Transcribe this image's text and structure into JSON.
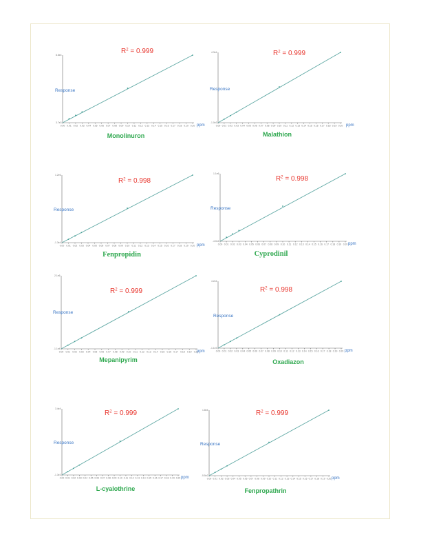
{
  "chart_data": [
    {
      "type": "line",
      "title": "Monolinuron",
      "r2_label": "R",
      "r2_value": " = 0.999",
      "ylabel": "Response",
      "xunit": "ppm",
      "y_top_label": "8.8e4",
      "y_bottom_label": "3.7e3",
      "x_ticks": [
        "0.00",
        "0.01",
        "0.02",
        "0.03",
        "0.04",
        "0.05",
        "0.06",
        "0.07",
        "0.08",
        "0.09",
        "0.10",
        "0.11",
        "0.12",
        "0.13",
        "0.14",
        "0.15",
        "0.16",
        "0.17",
        "0.18",
        "0.19",
        "0.20"
      ],
      "x": [
        0.01,
        0.02,
        0.03,
        0.1,
        0.2
      ],
      "y": [
        0.06,
        0.11,
        0.16,
        0.51,
        1.0
      ]
    },
    {
      "type": "line",
      "title": "Malathion",
      "r2_label": "R",
      "r2_value": " = 0.999",
      "ylabel": "Response",
      "xunit": "ppm",
      "y_top_label": "4.3e4",
      "y_bottom_label": "-1.0e3",
      "x_ticks": [
        "0.00",
        "0.01",
        "0.02",
        "0.03",
        "0.04",
        "0.05",
        "0.06",
        "0.07",
        "0.08",
        "0.09",
        "0.10",
        "0.11",
        "0.12",
        "0.13",
        "0.14",
        "0.15",
        "0.16",
        "0.17",
        "0.18",
        "0.19",
        "0.20"
      ],
      "x": [
        0.01,
        0.02,
        0.03,
        0.1,
        0.2
      ],
      "y": [
        0.05,
        0.1,
        0.15,
        0.51,
        1.0
      ]
    },
    {
      "type": "line",
      "title": "Fenpropidin",
      "r2_label": "R",
      "r2_value": " = 0.998",
      "ylabel": "Response",
      "xunit": "ppm",
      "y_top_label": "1.2e6",
      "y_bottom_label": "-1.3e4",
      "x_ticks": [
        "0.00",
        "0.01",
        "0.02",
        "0.03",
        "0.04",
        "0.05",
        "0.06",
        "0.07",
        "0.08",
        "0.09",
        "0.10",
        "0.11",
        "0.12",
        "0.13",
        "0.14",
        "0.15",
        "0.16",
        "0.17",
        "0.18",
        "0.19",
        "0.20"
      ],
      "x": [
        0.01,
        0.02,
        0.03,
        0.1,
        0.2
      ],
      "y": [
        0.05,
        0.1,
        0.15,
        0.51,
        1.0
      ]
    },
    {
      "type": "line",
      "title": "Cyprodinil",
      "r2_label": "R",
      "r2_value": " = 0.998",
      "ylabel": "Response",
      "xunit": "ppm",
      "y_top_label": "1.1e6",
      "y_bottom_label": "-4.0e4",
      "x_ticks": [
        "0.00",
        "0.01",
        "0.02",
        "0.03",
        "0.04",
        "0.05",
        "0.06",
        "0.07",
        "0.08",
        "0.09",
        "0.10",
        "0.11",
        "0.12",
        "0.13",
        "0.14",
        "0.15",
        "0.16",
        "0.17",
        "0.18",
        "0.19",
        "0.20"
      ],
      "x": [
        0.01,
        0.02,
        0.03,
        0.1,
        0.2
      ],
      "y": [
        0.06,
        0.11,
        0.16,
        0.52,
        1.0
      ]
    },
    {
      "type": "line",
      "title": "Mepanipyrim",
      "r2_label": "R",
      "r2_value": " = 0.999",
      "ylabel": "Response",
      "xunit": "ppm",
      "y_top_label": "2.1e6",
      "y_bottom_label": "-1.1e4",
      "x_ticks": [
        "0.00",
        "0.01",
        "0.02",
        "0.03",
        "0.04",
        "0.05",
        "0.06",
        "0.07",
        "0.08",
        "0.09",
        "0.10",
        "0.11",
        "0.12",
        "0.13",
        "0.14",
        "0.15",
        "0.16",
        "0.17",
        "0.18",
        "0.19",
        "0.20"
      ],
      "x": [
        0.01,
        0.02,
        0.03,
        0.1,
        0.2
      ],
      "y": [
        0.05,
        0.1,
        0.15,
        0.51,
        1.0
      ]
    },
    {
      "type": "line",
      "title": "Oxadiazon",
      "r2_label": "R",
      "r2_value": " = 0.998",
      "ylabel": "Response",
      "xunit": "ppm",
      "y_top_label": "4.2e4",
      "y_bottom_label": "-1.1e3",
      "x_ticks": [
        "0.00",
        "0.01",
        "0.02",
        "0.03",
        "0.04",
        "0.05",
        "0.06",
        "0.07",
        "0.08",
        "0.09",
        "0.10",
        "0.11",
        "0.12",
        "0.13",
        "0.14",
        "0.15",
        "0.16",
        "0.17",
        "0.18",
        "0.19",
        "0.20"
      ],
      "x": [
        0.01,
        0.02,
        0.03,
        0.1,
        0.2
      ],
      "y": [
        0.05,
        0.1,
        0.15,
        0.5,
        1.0
      ]
    },
    {
      "type": "line",
      "title": "L-cyalothrine",
      "r2_label": "R",
      "r2_value": " = 0.999",
      "ylabel": "Response",
      "xunit": "ppm",
      "y_top_label": "3.4e4",
      "y_bottom_label": "-1.3e3",
      "x_ticks": [
        "0.00",
        "0.01",
        "0.02",
        "0.03",
        "0.04",
        "0.05",
        "0.06",
        "0.07",
        "0.08",
        "0.09",
        "0.10",
        "0.11",
        "0.12",
        "0.13",
        "0.14",
        "0.15",
        "0.16",
        "0.17",
        "0.18",
        "0.19",
        "0.20"
      ],
      "x": [
        0.01,
        0.02,
        0.03,
        0.1,
        0.2
      ],
      "y": [
        0.05,
        0.1,
        0.15,
        0.51,
        1.0
      ]
    },
    {
      "type": "line",
      "title": "Fenpropathrin",
      "r2_label": "R",
      "r2_value": " = 0.999",
      "ylabel": "Response",
      "xunit": "ppm",
      "y_top_label": "1.8e4",
      "y_bottom_label": "-5.5e2",
      "x_ticks": [
        "0.00",
        "0.01",
        "0.02",
        "0.03",
        "0.04",
        "0.05",
        "0.06",
        "0.07",
        "0.08",
        "0.09",
        "0.10",
        "0.11",
        "0.12",
        "0.13",
        "0.14",
        "0.15",
        "0.16",
        "0.17",
        "0.18",
        "0.19",
        "0.20"
      ],
      "x": [
        0.01,
        0.02,
        0.03,
        0.1,
        0.2
      ],
      "y": [
        0.05,
        0.1,
        0.15,
        0.51,
        1.0
      ]
    }
  ],
  "colors": {
    "title": "#2fa84f",
    "r2": "#e8362e",
    "axis_label": "#3a76c4",
    "fit_line": "#5fa8a4",
    "point": "#3d9c92",
    "frame": "#ece6c8"
  }
}
